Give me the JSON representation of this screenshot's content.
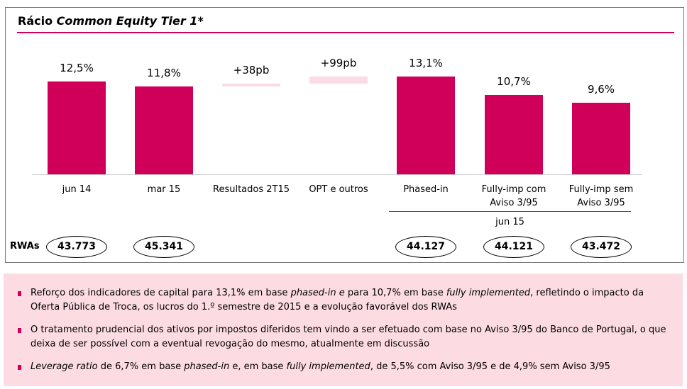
{
  "chart_data": {
    "type": "bar",
    "title": "Rácio Common Equity Tier 1*",
    "title_plain": "Rácio",
    "title_italic": "Common Equity Tier 1*",
    "categories": [
      "jun 14",
      "mar 15",
      "Resultados 2T15",
      "OPT e outros",
      "Phased-in",
      "Fully-imp com Aviso 3/95",
      "Fully-imp sem Aviso 3/95"
    ],
    "values": [
      12.5,
      11.8,
      0.38,
      0.99,
      13.1,
      10.7,
      9.6
    ],
    "kinds": [
      "total",
      "total",
      "delta",
      "delta",
      "total",
      "total",
      "total"
    ],
    "value_labels": [
      "12,5%",
      "11,8%",
      "+38pb",
      "+99pb",
      "13,1%",
      "10,7%",
      "9,6%"
    ],
    "unit": "%",
    "group_label": "jun 15",
    "rwa_label": "RWAs",
    "rwas": [
      "43.773",
      "45.341",
      "",
      "",
      "44.127",
      "44.121",
      "43.472"
    ],
    "colors": {
      "bar": "#d0005a",
      "delta": "#fbdbe4"
    }
  },
  "notes": [
    [
      {
        "t": "Reforço dos indicadores de capital para 13,1% em base "
      },
      {
        "t": "phased-in e",
        "i": true
      },
      {
        "t": " para 10,7% em base "
      },
      {
        "t": "fully implemented",
        "i": true
      },
      {
        "t": ", refletindo o impacto da Oferta Pública de Troca, os lucros do 1.º semestre de 2015 e a evolução favorável dos RWAs"
      }
    ],
    [
      {
        "t": "O tratamento prudencial dos ativos por impostos diferidos tem vindo a ser efetuado com base no Aviso 3/95 do Banco de Portugal, o que deixa de ser possível com a eventual revogação do mesmo, atualmente em discussão"
      }
    ],
    [
      {
        "t": "Leverage ratio",
        "i": true
      },
      {
        "t": " de 6,7% em base "
      },
      {
        "t": "phased-in",
        "i": true
      },
      {
        "t": " e, em  base "
      },
      {
        "t": "fully implemented",
        "i": true
      },
      {
        "t": ", de 5,5% com Aviso 3/95 e de 4,9% sem Aviso 3/95"
      }
    ]
  ]
}
